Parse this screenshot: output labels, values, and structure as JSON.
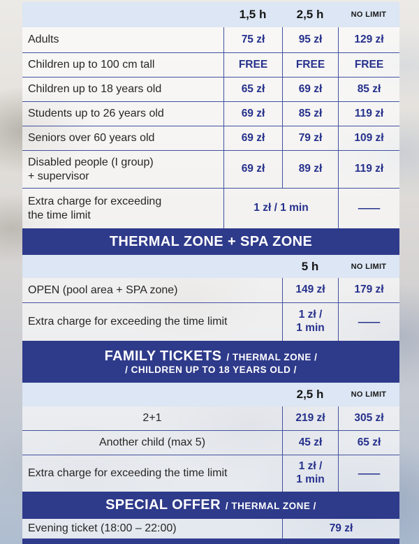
{
  "colors": {
    "banner_bg": "#2e3a8a",
    "band_bg": "#dce6f4",
    "price_text": "#26318c",
    "divider_line": "#4250a0",
    "label_text": "#262626",
    "banner_text": "#ffffff"
  },
  "main_table": {
    "columns": [
      "1,5 h",
      "2,5 h",
      "NO LIMIT"
    ],
    "rows": [
      {
        "label": "Adults",
        "v1": "75 zł",
        "v2": "95 zł",
        "v3": "129 zł"
      },
      {
        "label": "Children up to 100 cm tall",
        "v1": "FREE",
        "v2": "FREE",
        "v3": "FREE"
      },
      {
        "label": "Children up to 18 years old",
        "v1": "65 zł",
        "v2": "69 zł",
        "v3": "85 zł"
      },
      {
        "label": "Students up to 26 years old",
        "v1": "69 zł",
        "v2": "85 zł",
        "v3": "119 zł"
      },
      {
        "label": "Seniors over 60 years old",
        "v1": "69 zł",
        "v2": "79 zł",
        "v3": "109 zł"
      },
      {
        "label": "Disabled people (I group)\n+ supervisor",
        "v1": "69 zł",
        "v2": "89 zł",
        "v3": "119 zł"
      },
      {
        "label": "Extra charge for exceeding\nthe time limit",
        "merged": "1 zł / 1 min",
        "dash": "—"
      }
    ]
  },
  "thermal_spa": {
    "banner": "THERMAL ZONE + SPA ZONE",
    "columns": [
      "5 h",
      "NO LIMIT"
    ],
    "rows": [
      {
        "label": "OPEN (pool area + SPA zone)",
        "v1": "149 zł",
        "v2": "179 zł"
      },
      {
        "label": "Extra charge for exceeding the time limit",
        "v1": "1 zł /\n1 min",
        "dash": "—"
      }
    ]
  },
  "family": {
    "banner_main": "FAMILY TICKETS",
    "banner_suffix": "/ THERMAL ZONE /",
    "banner_line2": "/ CHILDREN UP TO 18 YEARS OLD /",
    "columns": [
      "2,5 h",
      "NO LIMIT"
    ],
    "rows": [
      {
        "label": "2+1",
        "v1": "219 zł",
        "v2": "305 zł"
      },
      {
        "label": "Another child (max 5)",
        "v1": "45 zł",
        "v2": "65 zł"
      },
      {
        "label": "Extra charge for exceeding the time limit",
        "v1": "1 zł /\n1 min",
        "dash": "—"
      }
    ]
  },
  "special": {
    "banner_main": "SPECIAL OFFER",
    "banner_suffix": "/ THERMAL ZONE /",
    "rows": [
      {
        "label": "Evening ticket (18:00 – 22:00)",
        "v1": "79 zł"
      }
    ]
  }
}
